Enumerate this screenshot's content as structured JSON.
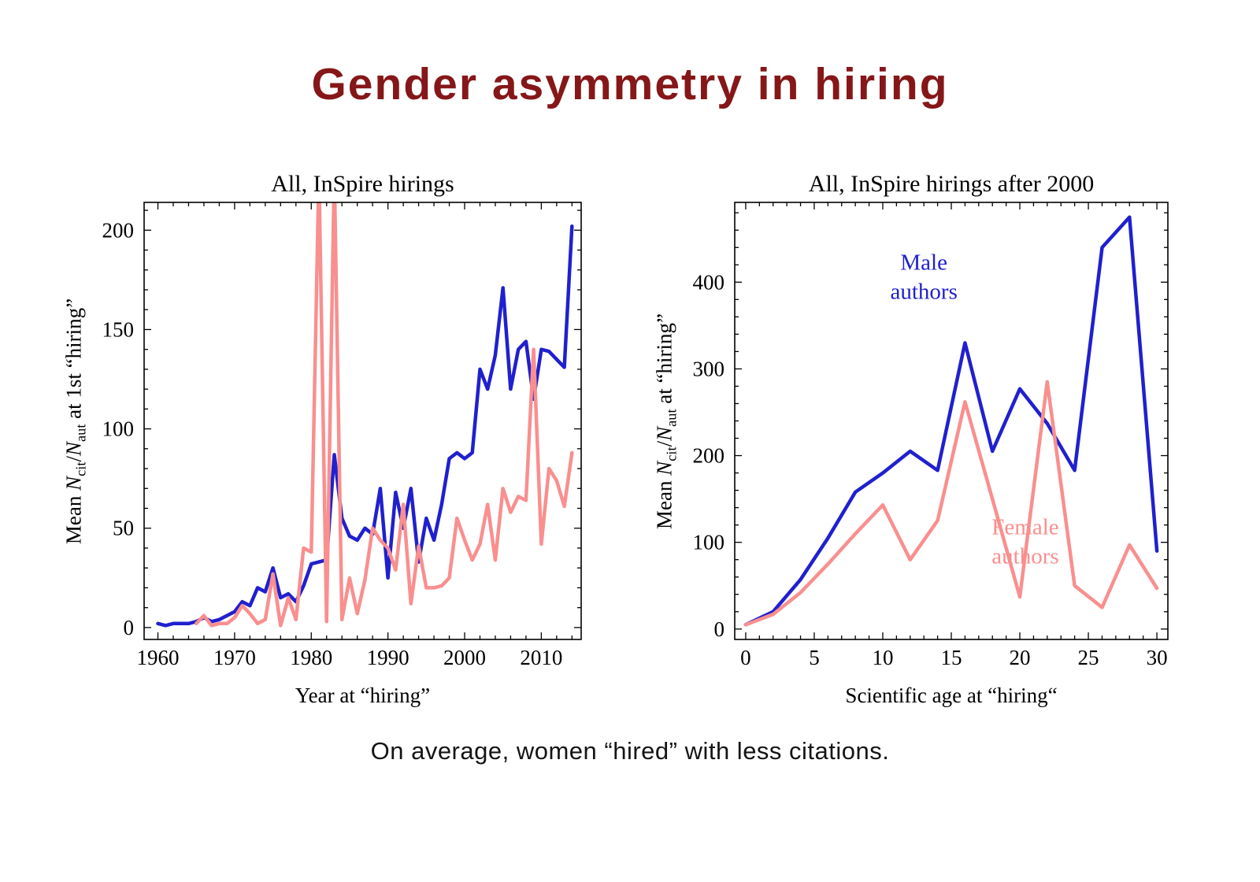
{
  "slide": {
    "title": "Gender asymmetry in hiring",
    "caption": "On average, women “hired” with less citations."
  },
  "colors": {
    "title": "#851719",
    "male": "#2020cf",
    "female": "#f98f8f"
  },
  "chart_data": [
    {
      "type": "line",
      "title": "All, InSpire hirings",
      "xlabel": "Year at “hiring”",
      "ylabel": "Mean *N*_cit_/*N*_aut_ at 1st “hiring”",
      "xlim": [
        1958.2,
        2015.2
      ],
      "ylim": [
        -6,
        214
      ],
      "xticks": [
        1960,
        1970,
        1980,
        1990,
        2000,
        2010
      ],
      "yticks": [
        0,
        50,
        100,
        150,
        200
      ],
      "xminor": 2,
      "yminor": 10,
      "legend": "none",
      "grid": false,
      "series": [
        {
          "name": "Male authors",
          "color": "#2020cf",
          "x": [
            1960,
            1961,
            1962,
            1963,
            1964,
            1965,
            1966,
            1967,
            1968,
            1969,
            1970,
            1971,
            1972,
            1973,
            1974,
            1975,
            1976,
            1977,
            1978,
            1979,
            1980,
            1981,
            1982,
            1983,
            1984,
            1985,
            1986,
            1987,
            1988,
            1989,
            1990,
            1991,
            1992,
            1993,
            1994,
            1995,
            1996,
            1997,
            1998,
            1999,
            2000,
            2001,
            2002,
            2003,
            2004,
            2005,
            2006,
            2007,
            2008,
            2009,
            2010,
            2011,
            2012,
            2013,
            2014
          ],
          "y": [
            2,
            1,
            2,
            2,
            2,
            3,
            5,
            3,
            4,
            6,
            8,
            13,
            11,
            20,
            18,
            30,
            15,
            17,
            13,
            21,
            32,
            33,
            34,
            87,
            55,
            46,
            44,
            50,
            47,
            70,
            25,
            68,
            50,
            70,
            33,
            55,
            44,
            62,
            85,
            88,
            85,
            88,
            130,
            120,
            137,
            171,
            120,
            140,
            144,
            115,
            140,
            139,
            135,
            131,
            202
          ]
        },
        {
          "name": "Female authors",
          "color": "#f98f8f",
          "x": [
            1965,
            1966,
            1967,
            1968,
            1969,
            1970,
            1971,
            1972,
            1973,
            1974,
            1975,
            1976,
            1977,
            1978,
            1979,
            1980,
            1981,
            1982,
            1983,
            1984,
            1985,
            1986,
            1987,
            1988,
            1989,
            1990,
            1991,
            1992,
            1993,
            1994,
            1995,
            1996,
            1997,
            1998,
            1999,
            2000,
            2001,
            2002,
            2003,
            2004,
            2005,
            2006,
            2007,
            2008,
            2009,
            2010,
            2011,
            2012,
            2013,
            2014
          ],
          "y": [
            2,
            6,
            1,
            2,
            2,
            5,
            11,
            7,
            2,
            4,
            27,
            1,
            15,
            4,
            40,
            38,
            230,
            3,
            230,
            4,
            25,
            7,
            24,
            50,
            44,
            40,
            29,
            62,
            12,
            41,
            20,
            20,
            21,
            25,
            55,
            44,
            34,
            42,
            62,
            34,
            70,
            58,
            66,
            64,
            140,
            42,
            80,
            74,
            61,
            88
          ]
        }
      ],
      "annotations": []
    },
    {
      "type": "line",
      "title": "All, InSpire hirings after 2000",
      "xlabel": "Scientific age at “hiring“",
      "ylabel": "Mean *N*_cit_/*N*_aut_ at “hiring”",
      "xlim": [
        -0.8,
        30.8
      ],
      "ylim": [
        -12,
        492
      ],
      "xticks": [
        0,
        5,
        10,
        15,
        20,
        25,
        30
      ],
      "yticks": [
        0,
        100,
        200,
        300,
        400
      ],
      "xminor": 1,
      "yminor": 20,
      "legend": "inline-annotations",
      "grid": false,
      "series": [
        {
          "name": "Male authors",
          "color": "#2020cf",
          "x": [
            0,
            2,
            4,
            6,
            8,
            10,
            12,
            14,
            16,
            18,
            20,
            22,
            24,
            26,
            28,
            30
          ],
          "y": [
            5,
            20,
            57,
            105,
            158,
            180,
            205,
            183,
            330,
            205,
            277,
            237,
            183,
            440,
            475,
            90
          ]
        },
        {
          "name": "Female authors",
          "color": "#f98f8f",
          "x": [
            0,
            2,
            4,
            6,
            8,
            10,
            12,
            14,
            16,
            18,
            20,
            22,
            24,
            26,
            28,
            30
          ],
          "y": [
            5,
            17,
            42,
            75,
            110,
            143,
            80,
            125,
            262,
            150,
            37,
            285,
            50,
            25,
            97,
            47
          ]
        }
      ],
      "annotations": [
        {
          "name": "male-authors-label",
          "lines": [
            "Male",
            "authors"
          ],
          "x": 13.0,
          "y": 405,
          "color": "#2020cf"
        },
        {
          "name": "female-authors-label",
          "lines": [
            "Female",
            "authors"
          ],
          "x": 20.4,
          "y": 100,
          "color": "#f98f8f"
        }
      ]
    }
  ]
}
